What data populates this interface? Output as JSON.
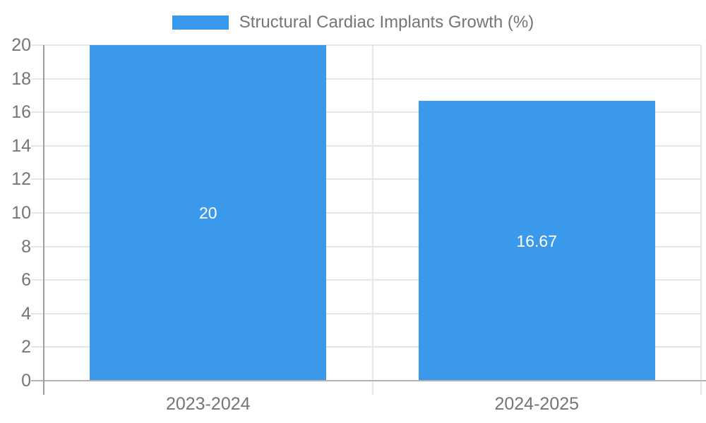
{
  "legend": {
    "label": "Structural Cardiac Implants Growth (%)"
  },
  "chart_data": {
    "type": "bar",
    "title": "Structural Cardiac Implants Growth (%)",
    "categories": [
      "2023-2024",
      "2024-2025"
    ],
    "values": [
      20,
      16.67
    ],
    "value_labels": [
      "20",
      "16.67"
    ],
    "series": [
      {
        "name": "Structural Cardiac Implants Growth (%)",
        "values": [
          20,
          16.67
        ]
      }
    ],
    "xlabel": "",
    "ylabel": "",
    "ylim": [
      0,
      20
    ],
    "yticks": [
      0,
      2,
      4,
      6,
      8,
      10,
      12,
      14,
      16,
      18,
      20
    ],
    "grid": true,
    "legend_position": "top-center",
    "bar_width_ratio": 0.72,
    "colors": {
      "bar": "#3B99EC",
      "gridline": "#E6E6E6",
      "y_axis_line": "#9E9E9E",
      "x_axis_line": "#B3B3B3",
      "axis_text": "#757575",
      "legend_text": "#757575",
      "value_label_text": "#FFFFFF",
      "background": "#FFFFFF"
    }
  }
}
